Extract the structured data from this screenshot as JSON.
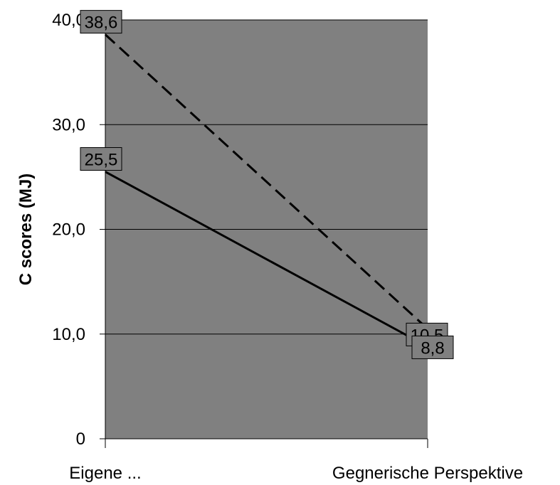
{
  "chart_data": {
    "type": "line",
    "title": "",
    "xlabel": "",
    "ylabel": "C scores (MJ)",
    "categories": [
      "Eigene ...",
      "Gegnerische Perspektive"
    ],
    "ylim": [
      0,
      40
    ],
    "yticks": [
      0,
      10,
      20,
      30,
      40
    ],
    "ytick_labels": [
      "0",
      "10,0",
      "20,0",
      "30,0",
      "40,0"
    ],
    "grid": true,
    "legend": "none",
    "plot_background": "#808080",
    "series": [
      {
        "style": "dashed",
        "color": "#000000",
        "values": [
          38.6,
          10.5
        ],
        "labels": [
          "38,6",
          "10,5"
        ]
      },
      {
        "style": "solid",
        "color": "#000000",
        "values": [
          25.5,
          8.8
        ],
        "labels": [
          "25,5",
          "8,8"
        ]
      }
    ]
  }
}
